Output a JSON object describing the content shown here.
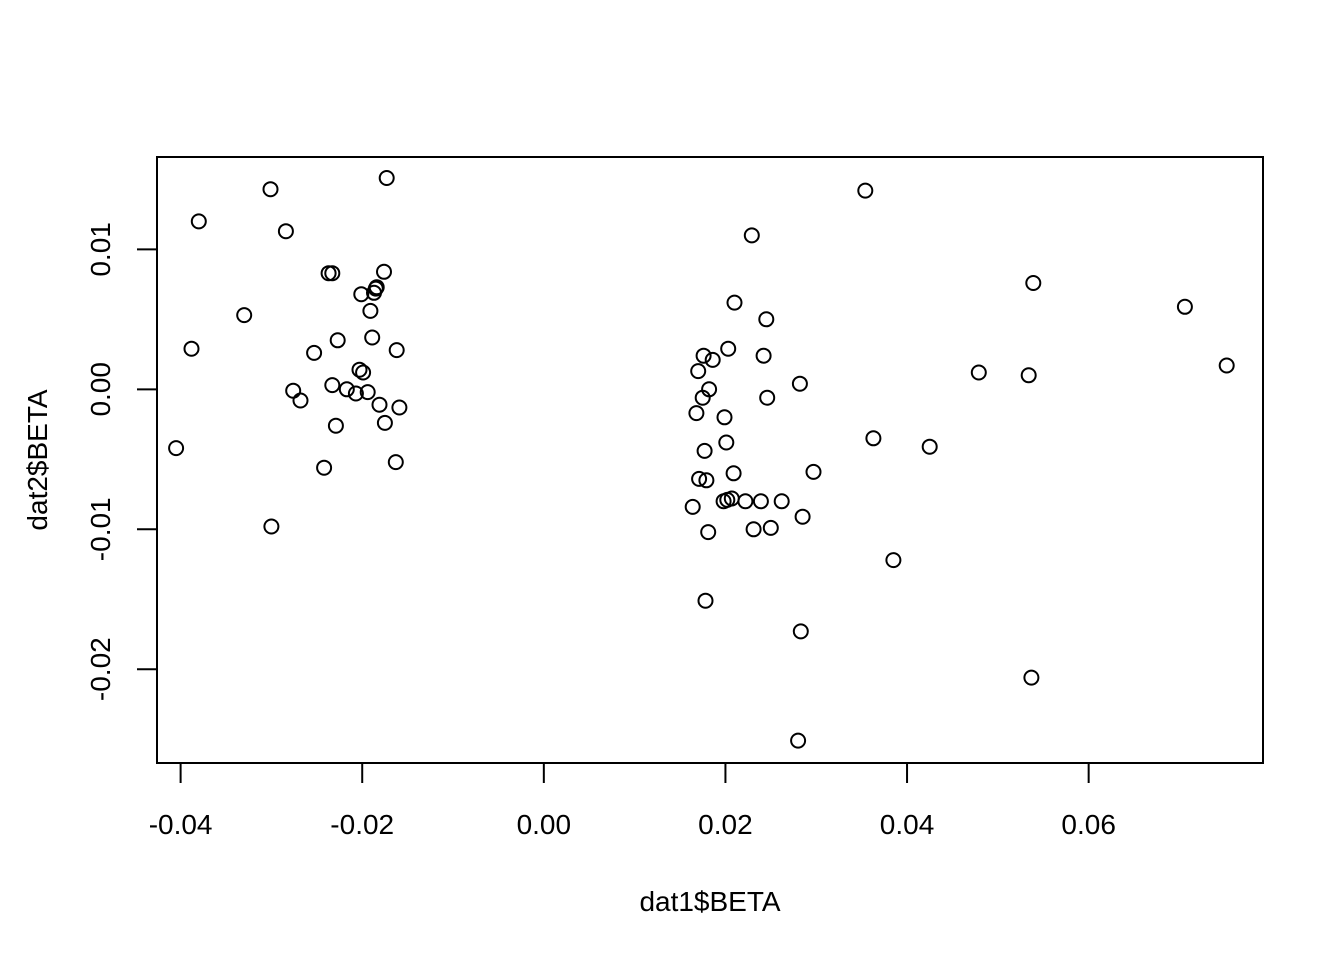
{
  "chart_data": {
    "type": "scatter",
    "title": "",
    "xlabel": "dat1$BETA",
    "ylabel": "dat2$BETA",
    "xlim": [
      -0.0426,
      0.0792
    ],
    "ylim": [
      -0.0267,
      0.0166
    ],
    "x_ticks": [
      -0.04,
      -0.02,
      0.0,
      0.02,
      0.04,
      0.06
    ],
    "x_tick_labels": [
      "-0.04",
      "-0.02",
      "0.00",
      "0.02",
      "0.04",
      "0.06"
    ],
    "y_ticks": [
      -0.02,
      -0.01,
      0.0,
      0.01
    ],
    "y_tick_labels": [
      "-0.02",
      "-0.01",
      "0.00",
      "0.01"
    ],
    "grid": false,
    "legend": "none",
    "marker": "open-circle",
    "marker_color": "#000000",
    "points": [
      {
        "x": -0.0405,
        "y": -0.0042
      },
      {
        "x": -0.0388,
        "y": 0.0029
      },
      {
        "x": -0.038,
        "y": 0.012
      },
      {
        "x": -0.033,
        "y": 0.0053
      },
      {
        "x": -0.0301,
        "y": 0.0143
      },
      {
        "x": -0.03,
        "y": -0.0098
      },
      {
        "x": -0.0284,
        "y": 0.0113
      },
      {
        "x": -0.0276,
        "y": -0.0001
      },
      {
        "x": -0.0268,
        "y": -0.0008
      },
      {
        "x": -0.0253,
        "y": 0.0026
      },
      {
        "x": -0.0242,
        "y": -0.0056
      },
      {
        "x": -0.0237,
        "y": 0.0083
      },
      {
        "x": -0.0233,
        "y": 0.0083
      },
      {
        "x": -0.0233,
        "y": 0.0003
      },
      {
        "x": -0.0229,
        "y": -0.0026
      },
      {
        "x": -0.0227,
        "y": 0.0035
      },
      {
        "x": -0.0217,
        "y": 0.0
      },
      {
        "x": -0.0207,
        "y": -0.0003
      },
      {
        "x": -0.0203,
        "y": 0.0014
      },
      {
        "x": -0.0201,
        "y": 0.0068
      },
      {
        "x": -0.0199,
        "y": 0.0012
      },
      {
        "x": -0.0194,
        "y": -0.0002
      },
      {
        "x": -0.0191,
        "y": 0.0056
      },
      {
        "x": -0.0189,
        "y": 0.0037
      },
      {
        "x": -0.0187,
        "y": 0.0069
      },
      {
        "x": -0.0185,
        "y": 0.0072
      },
      {
        "x": -0.0184,
        "y": 0.0073
      },
      {
        "x": -0.0181,
        "y": -0.0011
      },
      {
        "x": -0.0176,
        "y": 0.0084
      },
      {
        "x": -0.0175,
        "y": -0.0024
      },
      {
        "x": -0.0173,
        "y": 0.0151
      },
      {
        "x": -0.0163,
        "y": -0.0052
      },
      {
        "x": -0.0162,
        "y": 0.0028
      },
      {
        "x": -0.0159,
        "y": -0.0013
      },
      {
        "x": 0.0164,
        "y": -0.0084
      },
      {
        "x": 0.0168,
        "y": -0.0017
      },
      {
        "x": 0.017,
        "y": 0.0013
      },
      {
        "x": 0.0171,
        "y": -0.0064
      },
      {
        "x": 0.0175,
        "y": -0.0006
      },
      {
        "x": 0.0176,
        "y": 0.0024
      },
      {
        "x": 0.0177,
        "y": -0.0044
      },
      {
        "x": 0.0178,
        "y": -0.0151
      },
      {
        "x": 0.0179,
        "y": -0.0065
      },
      {
        "x": 0.0181,
        "y": -0.0102
      },
      {
        "x": 0.0182,
        "y": 0.0
      },
      {
        "x": 0.0186,
        "y": 0.0021
      },
      {
        "x": 0.0198,
        "y": -0.008
      },
      {
        "x": 0.0199,
        "y": -0.002
      },
      {
        "x": 0.0201,
        "y": -0.0038
      },
      {
        "x": 0.0202,
        "y": -0.0079
      },
      {
        "x": 0.0203,
        "y": 0.0029
      },
      {
        "x": 0.0207,
        "y": -0.0078
      },
      {
        "x": 0.0209,
        "y": -0.006
      },
      {
        "x": 0.021,
        "y": 0.0062
      },
      {
        "x": 0.0222,
        "y": -0.008
      },
      {
        "x": 0.0229,
        "y": 0.011
      },
      {
        "x": 0.0231,
        "y": -0.01
      },
      {
        "x": 0.0239,
        "y": -0.008
      },
      {
        "x": 0.0242,
        "y": 0.0024
      },
      {
        "x": 0.0245,
        "y": 0.005
      },
      {
        "x": 0.0246,
        "y": -0.0006
      },
      {
        "x": 0.025,
        "y": -0.0099
      },
      {
        "x": 0.0262,
        "y": -0.008
      },
      {
        "x": 0.028,
        "y": -0.0251
      },
      {
        "x": 0.0282,
        "y": 0.0004
      },
      {
        "x": 0.0283,
        "y": -0.0173
      },
      {
        "x": 0.0285,
        "y": -0.0091
      },
      {
        "x": 0.0297,
        "y": -0.0059
      },
      {
        "x": 0.0354,
        "y": 0.0142
      },
      {
        "x": 0.0363,
        "y": -0.0035
      },
      {
        "x": 0.0385,
        "y": -0.0122
      },
      {
        "x": 0.0425,
        "y": -0.0041
      },
      {
        "x": 0.0479,
        "y": 0.0012
      },
      {
        "x": 0.0534,
        "y": 0.001
      },
      {
        "x": 0.0537,
        "y": -0.0206
      },
      {
        "x": 0.0539,
        "y": 0.0076
      },
      {
        "x": 0.0706,
        "y": 0.0059
      },
      {
        "x": 0.0752,
        "y": 0.0017
      }
    ]
  }
}
